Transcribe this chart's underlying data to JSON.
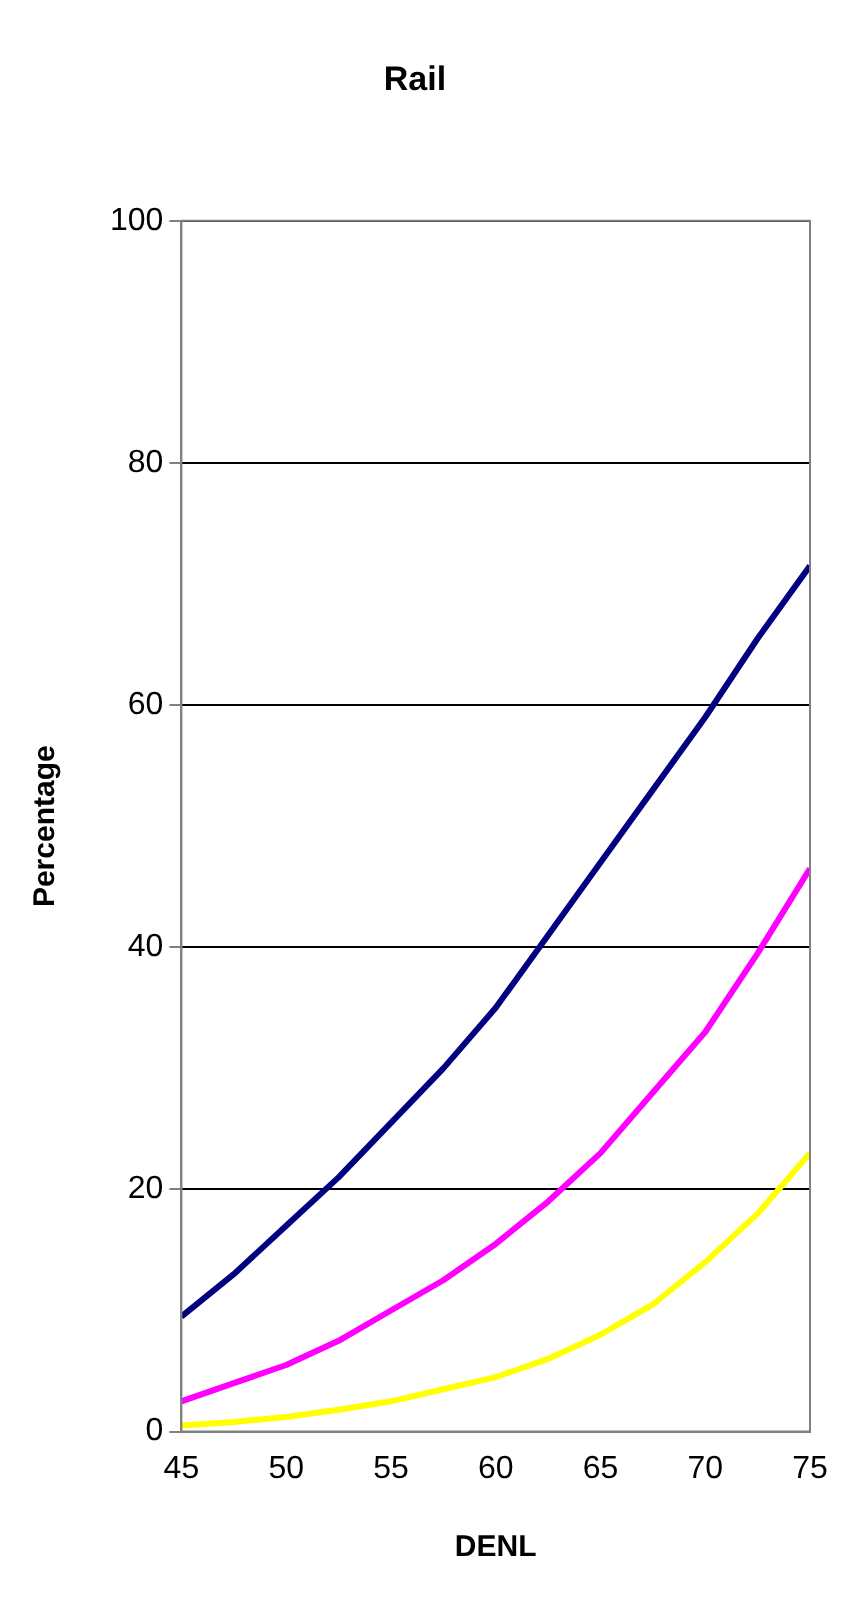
{
  "chart_data": {
    "type": "line",
    "title": "Rail",
    "xlabel": "DENL",
    "ylabel": "Percentage",
    "x": [
      45,
      47.5,
      50,
      52.5,
      55,
      57.5,
      60,
      62.5,
      65,
      67.5,
      70,
      72.5,
      75
    ],
    "series": [
      {
        "color": "#000080",
        "values": [
          9.5,
          13,
          17,
          21,
          25.5,
          30,
          35,
          41,
          47,
          53,
          59,
          65.5,
          71.5
        ]
      },
      {
        "color": "#ff00ff",
        "values": [
          2.5,
          4,
          5.5,
          7.5,
          10,
          12.5,
          15.5,
          19,
          23,
          28,
          33,
          39.5,
          46.5
        ]
      },
      {
        "color": "#ffff00",
        "values": [
          0.5,
          0.8,
          1.2,
          1.8,
          2.5,
          3.5,
          4.5,
          6,
          8,
          10.5,
          14,
          18,
          23
        ]
      }
    ],
    "xlim": [
      45,
      75
    ],
    "xticks": [
      45,
      50,
      55,
      60,
      65,
      70,
      75
    ],
    "ylim": [
      0,
      100
    ],
    "yticks": [
      0,
      20,
      40,
      60,
      80,
      100
    ],
    "grid": "y",
    "legend": false,
    "marker": "none",
    "line_style": "solid"
  }
}
